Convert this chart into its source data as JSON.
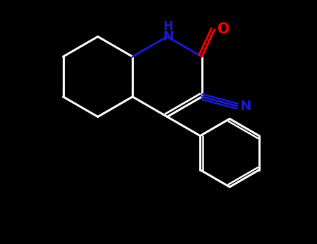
{
  "bg_color": "#000000",
  "bond_color": "#ffffff",
  "N_color": "#1a1acc",
  "O_color": "#ff0000",
  "CN_color": "#1a1acc",
  "bond_width": 2.2,
  "fig_width": 4.55,
  "fig_height": 3.5,
  "dpi": 100,
  "xlim": [
    0,
    9.1
  ],
  "ylim": [
    0,
    7.0
  ]
}
